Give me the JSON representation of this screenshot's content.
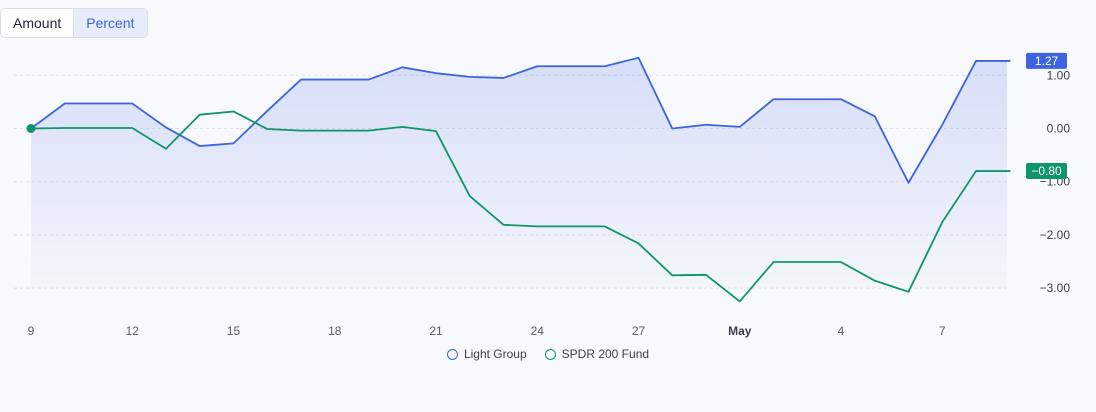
{
  "toggle": {
    "options": [
      "Amount",
      "Percent"
    ],
    "active": "Percent"
  },
  "chart_data": {
    "type": "line",
    "x_labels": [
      "9",
      "12",
      "15",
      "18",
      "21",
      "24",
      "27",
      "May",
      "4",
      "7"
    ],
    "x_label_bold": "May",
    "y_ticks": [
      1.0,
      0.0,
      -1.0,
      -2.0,
      -3.0
    ],
    "y_tick_labels": [
      "1.00",
      "0.00",
      "−1.00",
      "−2.00",
      "−3.00"
    ],
    "ylim": [
      -3.1,
      1.2
    ],
    "grid": true,
    "legend": "bottom-center",
    "series": [
      {
        "name": "Light Group",
        "color": "#3d63e0",
        "fill": true,
        "end_label": "1.27",
        "values": [
          0.0,
          0.47,
          0.47,
          0.47,
          0.02,
          -0.33,
          -0.28,
          0.33,
          0.92,
          0.92,
          0.92,
          1.15,
          1.04,
          0.97,
          0.95,
          1.17,
          1.17,
          1.17,
          1.33,
          0.0,
          0.07,
          0.03,
          0.55,
          0.55,
          0.55,
          0.23,
          -1.02,
          0.07,
          1.27,
          1.27
        ]
      },
      {
        "name": "SPDR 200 Fund",
        "color": "#0f9668",
        "fill": false,
        "end_label": "−0.80",
        "values": [
          0.0,
          0.01,
          0.01,
          0.01,
          -0.38,
          0.26,
          0.32,
          -0.01,
          -0.04,
          -0.04,
          -0.04,
          0.03,
          -0.05,
          -1.27,
          -1.81,
          -1.84,
          -1.84,
          -1.84,
          -2.16,
          -2.76,
          -2.75,
          -3.25,
          -2.51,
          -2.51,
          -2.51,
          -2.86,
          -3.07,
          -1.76,
          -0.8,
          -0.8
        ]
      }
    ]
  }
}
